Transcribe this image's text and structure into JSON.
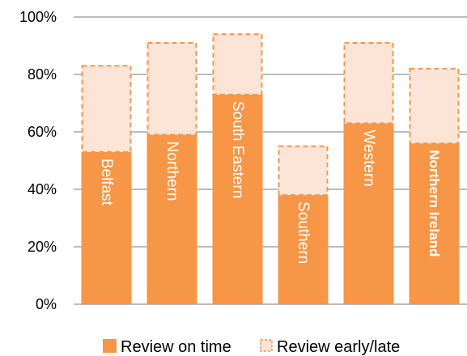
{
  "chart_data": {
    "type": "bar",
    "stacked": true,
    "categories": [
      "Belfast",
      "Northern",
      "South Eastern",
      "Southern",
      "Western",
      "Northern Ireland"
    ],
    "series": [
      {
        "name": "Review on time",
        "values": [
          53,
          59,
          73,
          38,
          63,
          56
        ]
      },
      {
        "name": "Review early/late",
        "values": [
          30,
          32,
          21,
          17,
          28,
          26
        ]
      }
    ],
    "yticks": [
      "0%",
      "20%",
      "40%",
      "60%",
      "80%",
      "100%"
    ],
    "ylim": [
      0,
      100
    ],
    "grid": true,
    "legend_position": "bottom",
    "colors": {
      "on_time": "#F79646",
      "early_late_fill": "#FCE4D6",
      "early_late_border": "#F79646",
      "grid": "#A6A6A6"
    }
  }
}
